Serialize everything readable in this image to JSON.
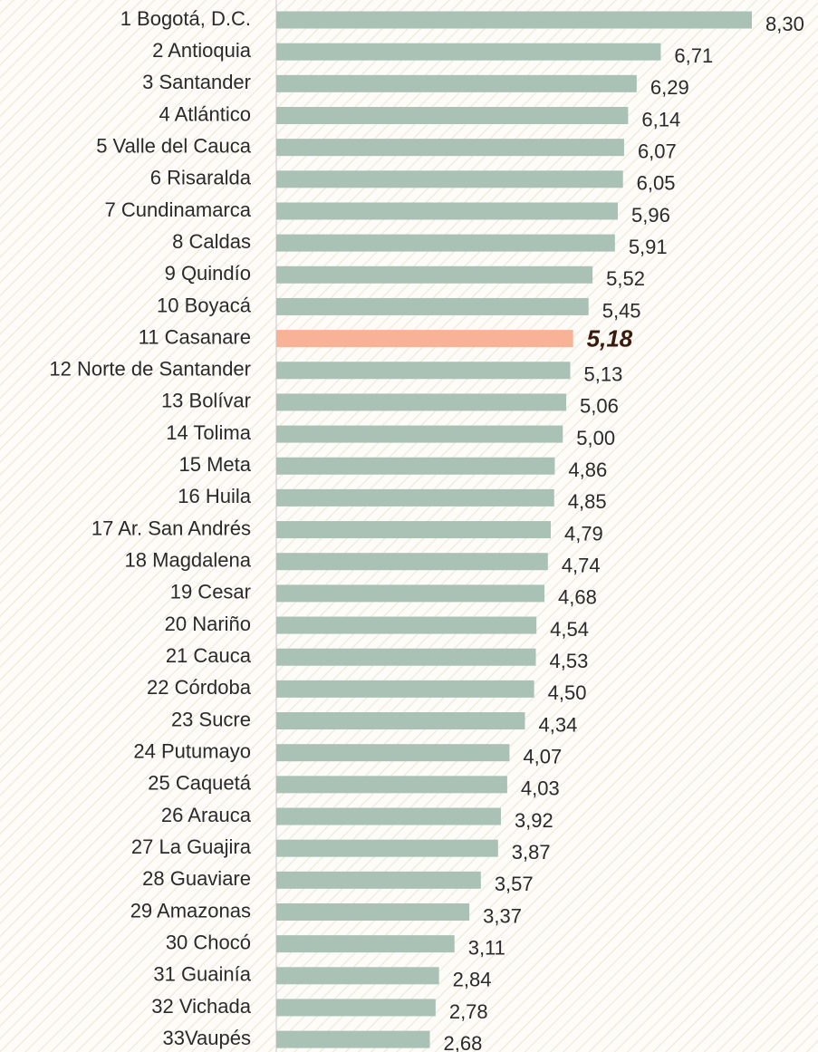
{
  "chart_data": {
    "type": "hbar",
    "categories": [
      "1 Bogotá, D.C.",
      "2 Antioquia",
      "3 Santander",
      "4 Atlántico",
      "5 Valle del Cauca",
      "6 Risaralda",
      "7 Cundinamarca",
      "8 Caldas",
      "9 Quindío",
      "10 Boyacá",
      "11 Casanare",
      "12 Norte de Santander",
      "13 Bolívar",
      "14 Tolima",
      "15 Meta",
      "16 Huila",
      "17 Ar. San Andrés",
      "18 Magdalena",
      "19 Cesar",
      "20 Nariño",
      "21 Cauca",
      "22 Córdoba",
      "23 Sucre",
      "24 Putumayo",
      "25 Caquetá",
      "26 Arauca",
      "27 La Guajira",
      "28 Guaviare",
      "29 Amazonas",
      "30 Chocó",
      "31 Guainía",
      "32 Vichada",
      "33Vaupés"
    ],
    "values": [
      8.3,
      6.71,
      6.29,
      6.14,
      6.07,
      6.05,
      5.96,
      5.91,
      5.52,
      5.45,
      5.18,
      5.13,
      5.06,
      5.0,
      4.86,
      4.85,
      4.79,
      4.74,
      4.68,
      4.54,
      4.53,
      4.5,
      4.34,
      4.07,
      4.03,
      3.92,
      3.87,
      3.57,
      3.37,
      3.11,
      2.84,
      2.78,
      2.68
    ],
    "value_labels": [
      "8,30",
      "6,71",
      "6,29",
      "6,14",
      "6,07",
      "6,05",
      "5,96",
      "5,91",
      "5,52",
      "5,45",
      "5,18",
      "5,13",
      "5,06",
      "5,00",
      "4,86",
      "4,85",
      "4,79",
      "4,74",
      "4,68",
      "4,54",
      "4,53",
      "4,50",
      "4,34",
      "4,07",
      "4,03",
      "3,92",
      "3,87",
      "3,57",
      "3,37",
      "3,11",
      "2,84",
      "2,78",
      "2,68"
    ],
    "colors": [
      "#a9c2b5",
      "#a9c2b5",
      "#a9c2b5",
      "#a9c2b5",
      "#a9c2b5",
      "#a9c2b5",
      "#a9c2b5",
      "#a9c2b5",
      "#a9c2b5",
      "#a9c2b5",
      "#f8b296",
      "#a9c2b5",
      "#a9c2b5",
      "#a9c2b5",
      "#a9c2b5",
      "#a9c2b5",
      "#a9c2b5",
      "#a9c2b5",
      "#a9c2b5",
      "#a9c2b5",
      "#a9c2b5",
      "#a9c2b5",
      "#a9c2b5",
      "#a9c2b5",
      "#a9c2b5",
      "#a9c2b5",
      "#a9c2b5",
      "#a9c2b5",
      "#a9c2b5",
      "#a9c2b5",
      "#a9c2b5",
      "#a9c2b5",
      "#a9c2b5"
    ],
    "xlim": [
      0,
      8.3
    ]
  }
}
